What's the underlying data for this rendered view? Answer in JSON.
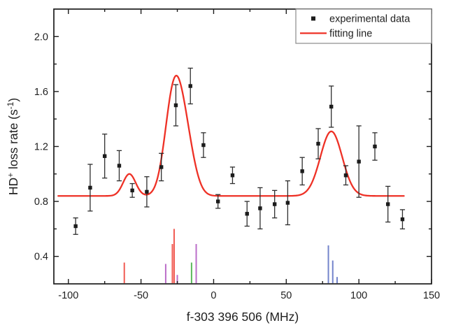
{
  "chart_data": {
    "type": "scatter",
    "title": "",
    "xlabel": "f-303 396 506 (MHz)",
    "ylabel_parts": [
      {
        "text": "HD"
      },
      {
        "text": "+",
        "sup": true
      },
      {
        "text": " loss rate (s"
      },
      {
        "text": "-1",
        "sup": true
      },
      {
        "text": ")"
      }
    ],
    "xlim": [
      -110,
      150
    ],
    "ylim": [
      0.2,
      2.2
    ],
    "x_major_ticks": [
      -100,
      -50,
      0,
      50,
      100,
      150
    ],
    "x_minor_step": 25,
    "y_major_ticks": [
      0.4,
      0.8,
      1.2,
      1.6,
      2.0
    ],
    "y_minor_step": 0.2,
    "grid": false,
    "legend_position": "top-right-inside",
    "legend": [
      {
        "label": "experimental data",
        "marker": "square"
      },
      {
        "label": "fitting line",
        "marker": "line"
      }
    ],
    "experimental_points": [
      {
        "x": -95,
        "y": 0.62,
        "err": 0.06
      },
      {
        "x": -85,
        "y": 0.9,
        "err": 0.17
      },
      {
        "x": -75,
        "y": 1.13,
        "err": 0.16
      },
      {
        "x": -65,
        "y": 1.06,
        "err": 0.11
      },
      {
        "x": -56,
        "y": 0.88,
        "err": 0.05
      },
      {
        "x": -46,
        "y": 0.87,
        "err": 0.11
      },
      {
        "x": -36,
        "y": 1.05,
        "err": 0.1
      },
      {
        "x": -26,
        "y": 1.5,
        "err": 0.15
      },
      {
        "x": -16,
        "y": 1.64,
        "err": 0.13
      },
      {
        "x": -7,
        "y": 1.21,
        "err": 0.09
      },
      {
        "x": 3,
        "y": 0.8,
        "err": 0.05
      },
      {
        "x": 13,
        "y": 0.99,
        "err": 0.06
      },
      {
        "x": 23,
        "y": 0.71,
        "err": 0.09
      },
      {
        "x": 32,
        "y": 0.75,
        "err": 0.15
      },
      {
        "x": 42,
        "y": 0.78,
        "err": 0.1
      },
      {
        "x": 51,
        "y": 0.79,
        "err": 0.16
      },
      {
        "x": 61,
        "y": 1.02,
        "err": 0.1
      },
      {
        "x": 72,
        "y": 1.22,
        "err": 0.11
      },
      {
        "x": 81,
        "y": 1.49,
        "err": 0.15
      },
      {
        "x": 91,
        "y": 0.99,
        "err": 0.07
      },
      {
        "x": 100,
        "y": 1.09,
        "err": 0.26
      },
      {
        "x": 111,
        "y": 1.2,
        "err": 0.1
      },
      {
        "x": 120,
        "y": 0.78,
        "err": 0.13
      },
      {
        "x": 130,
        "y": 0.67,
        "err": 0.07
      }
    ],
    "fit_curve": {
      "model": "baseline + sum of gaussian peaks",
      "baseline": 0.84,
      "x_range": [
        -107,
        131
      ],
      "peaks": [
        {
          "center": -58,
          "amplitude": 0.16,
          "sigma": 4.3
        },
        {
          "center": -27.5,
          "amplitude": 0.72,
          "sigma": 6.0
        },
        {
          "center": -19,
          "amplitude": 0.35,
          "sigma": 6.0
        },
        {
          "center": 81,
          "amplitude": 0.47,
          "sigma": 7.5
        }
      ],
      "peak_readings": [
        {
          "center": -58,
          "top": 1.0
        },
        {
          "center": -26.5,
          "top": 1.69
        },
        {
          "center": 81,
          "top": 1.31
        }
      ]
    },
    "stick_spectra": [
      {
        "name": "red-sticks",
        "color": "#f15b53",
        "lines": [
          {
            "x": -61.5,
            "top": 0.355
          },
          {
            "x": -28.4,
            "top": 0.49
          },
          {
            "x": -27.2,
            "top": 0.6
          }
        ]
      },
      {
        "name": "purple-sticks",
        "color": "#bb6ec9",
        "lines": [
          {
            "x": -33,
            "top": 0.345
          },
          {
            "x": -25,
            "top": 0.265
          },
          {
            "x": -12,
            "top": 0.49
          }
        ]
      },
      {
        "name": "green-sticks",
        "color": "#5cb85c",
        "lines": [
          {
            "x": -15.2,
            "top": 0.355
          }
        ]
      },
      {
        "name": "blue-sticks",
        "color": "#7484cb",
        "lines": [
          {
            "x": 79,
            "top": 0.48
          },
          {
            "x": 82,
            "top": 0.37
          },
          {
            "x": 85,
            "top": 0.25
          }
        ]
      },
      {
        "note": "stick baseline",
        "baseline": 0.2
      }
    ]
  },
  "colors": {
    "background": "#ffffff",
    "axis": "#1c1c1c",
    "text": "#1f1f1f",
    "marker": "#1c1c1c",
    "error_bar": "#2e2e2e",
    "fit_line": "#ee3126",
    "legend_border": "#8a8a8a"
  }
}
